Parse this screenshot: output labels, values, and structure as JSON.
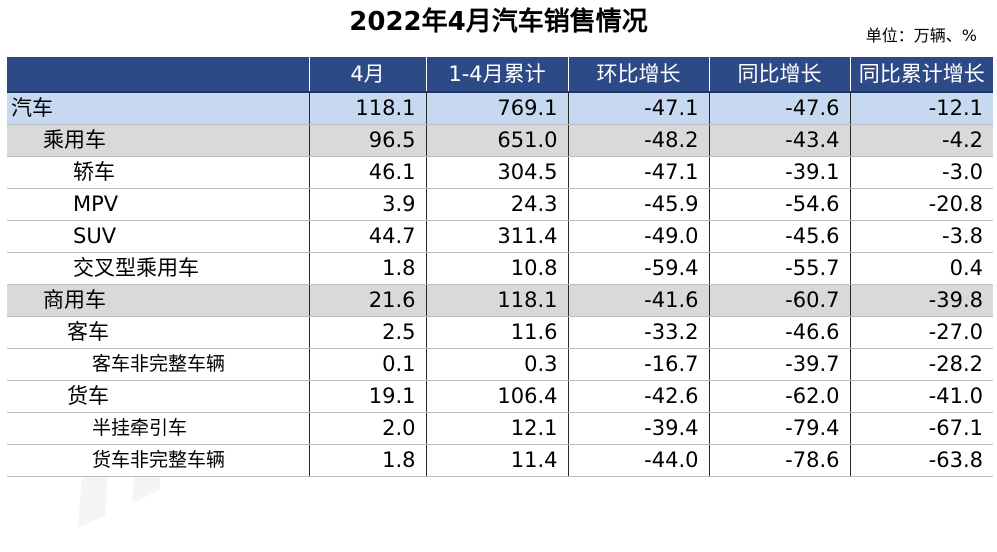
{
  "title": "2022年4月汽车销售情况",
  "unit": "单位：万辆、%",
  "colors": {
    "header_bg": "#2d4a86",
    "total_row_bg": "#c6d9f1",
    "category_row_bg": "#d9d9d9"
  },
  "columns": [
    "",
    "4月",
    "1-4月累计",
    "环比增长",
    "同比增长",
    "同比累计增长"
  ],
  "rows": [
    {
      "name": "汽车",
      "level": 0,
      "values": [
        "118.1",
        "769.1",
        "-47.1",
        "-47.6",
        "-12.1"
      ]
    },
    {
      "name": "乘用车",
      "level": 1,
      "values": [
        "96.5",
        "651.0",
        "-48.2",
        "-43.4",
        "-4.2"
      ]
    },
    {
      "name": "轿车",
      "level": 2,
      "values": [
        "46.1",
        "304.5",
        "-47.1",
        "-39.1",
        "-3.0"
      ]
    },
    {
      "name": "MPV",
      "level": 2,
      "values": [
        "3.9",
        "24.3",
        "-45.9",
        "-54.6",
        "-20.8"
      ]
    },
    {
      "name": "SUV",
      "level": 2,
      "values": [
        "44.7",
        "311.4",
        "-49.0",
        "-45.6",
        "-3.8"
      ]
    },
    {
      "name": "交叉型乘用车",
      "level": 2,
      "values": [
        "1.8",
        "10.8",
        "-59.4",
        "-55.7",
        "0.4"
      ]
    },
    {
      "name": "商用车",
      "level": 1,
      "values": [
        "21.6",
        "118.1",
        "-41.6",
        "-60.7",
        "-39.8"
      ]
    },
    {
      "name": "客车",
      "level": 4,
      "values": [
        "2.5",
        "11.6",
        "-33.2",
        "-46.6",
        "-27.0"
      ]
    },
    {
      "name": "客车非完整车辆",
      "level": 5,
      "values": [
        "0.1",
        "0.3",
        "-16.7",
        "-39.7",
        "-28.2"
      ]
    },
    {
      "name": "货车",
      "level": 4,
      "values": [
        "19.1",
        "106.4",
        "-42.6",
        "-62.0",
        "-41.0"
      ]
    },
    {
      "name": "半挂牵引车",
      "level": 5,
      "values": [
        "2.0",
        "12.1",
        "-39.4",
        "-79.4",
        "-67.1"
      ]
    },
    {
      "name": "货车非完整车辆",
      "level": 5,
      "values": [
        "1.8",
        "11.4",
        "-44.0",
        "-78.6",
        "-63.8"
      ]
    }
  ]
}
